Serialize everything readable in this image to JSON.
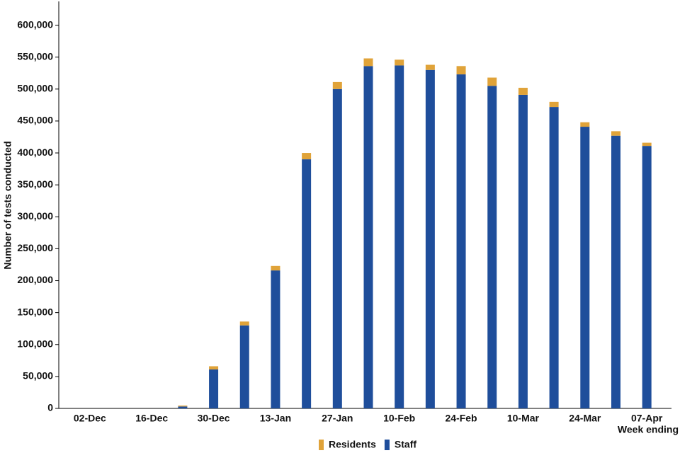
{
  "chart_data": {
    "type": "stacked-bar",
    "y_label": "Number of tests conducted",
    "x_label": "Week ending",
    "categories": [
      "02-Dec",
      null,
      "16-Dec",
      null,
      "30-Dec",
      null,
      "13-Jan",
      null,
      "27-Jan",
      null,
      "10-Feb",
      null,
      "24-Feb",
      null,
      "10-Mar",
      null,
      "24-Mar",
      null,
      "07-Apr"
    ],
    "series": [
      {
        "name": "Residents",
        "color": "#e0a339",
        "values": [
          0,
          0,
          0,
          1500,
          5000,
          6000,
          7000,
          10000,
          11000,
          12000,
          9000,
          8000,
          13000,
          13000,
          11000,
          8000,
          7000,
          7000,
          5000
        ]
      },
      {
        "name": "Staff",
        "color": "#1f4e9b",
        "values": [
          0,
          0,
          0,
          3000,
          61000,
          130000,
          216000,
          390000,
          500000,
          536000,
          537000,
          530000,
          523000,
          505000,
          491000,
          472000,
          441000,
          427000,
          411000
        ]
      }
    ],
    "ylim": [
      0,
      635000
    ],
    "yticks": [
      0,
      {
        "value": 50000,
        "label": "50,000"
      },
      {
        "value": 100000,
        "label": "100,000"
      },
      {
        "value": 150000,
        "label": "150,000"
      },
      {
        "value": 200000,
        "label": "200,000"
      },
      {
        "value": 250000,
        "label": "250,000"
      },
      {
        "value": 300000,
        "label": "300,000"
      },
      {
        "value": 350000,
        "label": "350,000"
      },
      {
        "value": 400000,
        "label": "400,000"
      },
      {
        "value": 450000,
        "label": "450,000"
      },
      {
        "value": 500000,
        "label": "500,000"
      },
      {
        "value": 550000,
        "label": "550,000"
      },
      {
        "value": 600000,
        "label": "600,000"
      }
    ],
    "stack_order": [
      "Staff",
      "Residents"
    ],
    "legend": "bottom"
  }
}
